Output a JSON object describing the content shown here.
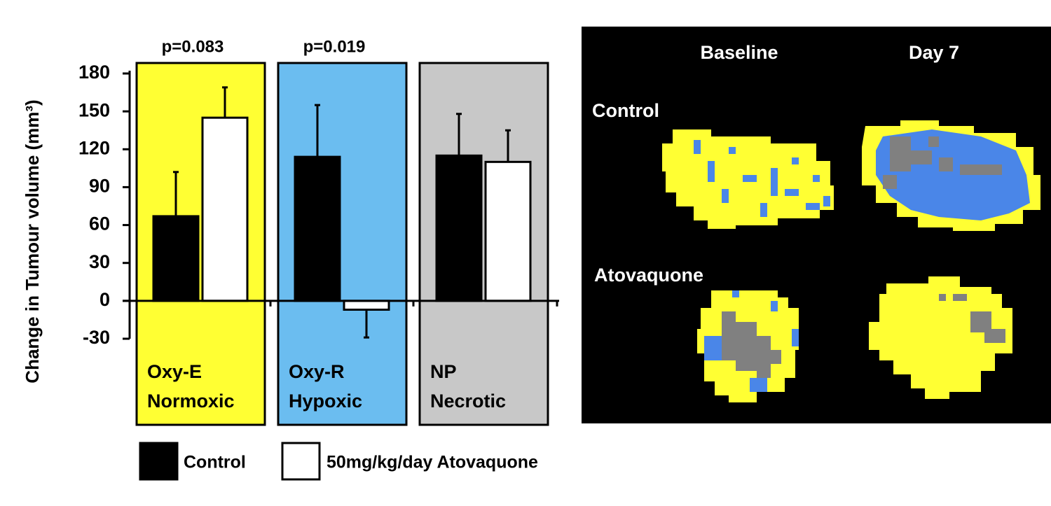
{
  "chart_data": {
    "type": "bar",
    "y_label": "Change in Tumour volume (mm³)",
    "categories": [
      [
        "Oxy-E",
        "Normoxic"
      ],
      [
        "Oxy-R",
        "Hypoxic"
      ],
      [
        "NP",
        "Necrotic"
      ]
    ],
    "category_colors": [
      "#ffff33",
      "#6bbdf0",
      "#c8c8c8"
    ],
    "annotations": [
      "p=0.083",
      "p=0.019",
      null
    ],
    "series": [
      {
        "name": "Control",
        "color": "#000000",
        "values": [
          67,
          114,
          115
        ],
        "errors": [
          35,
          41,
          33
        ]
      },
      {
        "name": "50mg/kg/day Atovaquone",
        "color": "#ffffff",
        "values": [
          145,
          -7,
          110
        ],
        "errors": [
          24,
          22,
          25
        ]
      }
    ],
    "ylim": [
      -30,
      180
    ],
    "yticks": [
      -30,
      0,
      30,
      60,
      90,
      120,
      150,
      180
    ]
  },
  "image_panel": {
    "columns": [
      "Baseline",
      "Day 7"
    ],
    "rows": [
      "Control",
      "Atovaquone"
    ]
  }
}
